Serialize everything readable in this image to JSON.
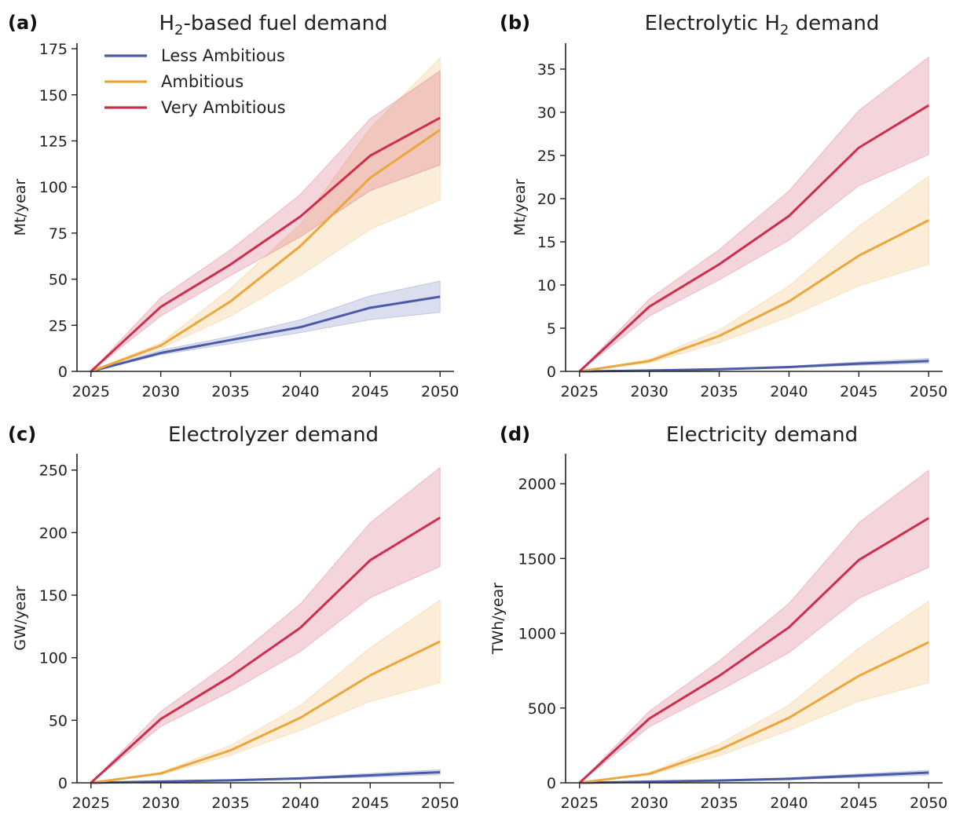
{
  "colors": {
    "less_ambitious": "#4a5aa8",
    "ambitious": "#eba73d",
    "very_ambitious": "#cc2e4e"
  },
  "legend": {
    "items": [
      "Less Ambitious",
      "Ambitious",
      "Very Ambitious"
    ]
  },
  "chart_data": [
    {
      "type": "line",
      "letter": "(a)",
      "title": "H2-based fuel demand",
      "title_parts": {
        "prefix": "H",
        "sub": "2",
        "suffix": "-based fuel demand"
      },
      "xlabel": "",
      "ylabel": "Mt/year",
      "x": [
        2025,
        2030,
        2035,
        2040,
        2045,
        2050
      ],
      "xlim": [
        2024,
        2051
      ],
      "ylim": [
        0,
        178
      ],
      "yticks": [
        0,
        25,
        50,
        75,
        100,
        125,
        150,
        175
      ],
      "xticks": [
        2025,
        2030,
        2035,
        2040,
        2045,
        2050
      ],
      "legend_position": "top-left",
      "series": [
        {
          "name": "Less Ambitious",
          "values": [
            0,
            10,
            17,
            24,
            34.5,
            40.5
          ],
          "lower": [
            0,
            9,
            15,
            21,
            28,
            32
          ],
          "upper": [
            0,
            11.5,
            19,
            28,
            41,
            49
          ]
        },
        {
          "name": "Ambitious",
          "values": [
            0,
            14,
            38,
            68,
            105,
            131
          ],
          "lower": [
            0,
            12.5,
            30,
            52,
            77,
            93
          ],
          "upper": [
            0,
            15.5,
            45,
            80,
            132,
            170
          ]
        },
        {
          "name": "Very Ambitious",
          "values": [
            0,
            35,
            58,
            84,
            117,
            137.5
          ],
          "lower": [
            0,
            30,
            52,
            73,
            98,
            112
          ],
          "upper": [
            0,
            40,
            66,
            96,
            137,
            163
          ]
        }
      ]
    },
    {
      "type": "line",
      "letter": "(b)",
      "title": "Electrolytic H2 demand",
      "title_parts": {
        "prefix": "Electrolytic H",
        "sub": "2",
        "suffix": " demand"
      },
      "xlabel": "",
      "ylabel": "Mt/year",
      "x": [
        2025,
        2030,
        2035,
        2040,
        2045,
        2050
      ],
      "xlim": [
        2024,
        2051
      ],
      "ylim": [
        0,
        38
      ],
      "yticks": [
        0,
        5,
        10,
        15,
        20,
        25,
        30,
        35
      ],
      "xticks": [
        2025,
        2030,
        2035,
        2040,
        2045,
        2050
      ],
      "series": [
        {
          "name": "Less Ambitious",
          "values": [
            0,
            0.1,
            0.25,
            0.5,
            0.9,
            1.2
          ],
          "lower": [
            0,
            0.05,
            0.2,
            0.4,
            0.7,
            0.95
          ],
          "upper": [
            0,
            0.15,
            0.3,
            0.6,
            1.1,
            1.5
          ]
        },
        {
          "name": "Ambitious",
          "values": [
            0,
            1.2,
            4.1,
            8.1,
            13.4,
            17.5
          ],
          "lower": [
            0,
            1.0,
            3.3,
            6.3,
            9.9,
            12.4
          ],
          "upper": [
            0,
            1.4,
            4.8,
            9.9,
            16.8,
            22.6
          ]
        },
        {
          "name": "Very Ambitious",
          "values": [
            0,
            7.5,
            12.4,
            18,
            25.9,
            30.8
          ],
          "lower": [
            0,
            6.4,
            10.6,
            15.2,
            21.5,
            25.1
          ],
          "upper": [
            0,
            8.4,
            14.1,
            20.9,
            30.2,
            36.4
          ]
        }
      ]
    },
    {
      "type": "line",
      "letter": "(c)",
      "title": "Electrolyzer demand",
      "xlabel": "",
      "ylabel": "GW/year",
      "x": [
        2025,
        2030,
        2035,
        2040,
        2045,
        2050
      ],
      "xlim": [
        2024,
        2051
      ],
      "ylim": [
        0,
        263
      ],
      "yticks": [
        0,
        50,
        100,
        150,
        200,
        250
      ],
      "xticks": [
        2025,
        2030,
        2035,
        2040,
        2045,
        2050
      ],
      "series": [
        {
          "name": "Less Ambitious",
          "values": [
            0,
            1,
            2,
            3.5,
            6,
            8.5
          ],
          "lower": [
            0,
            0.8,
            1.5,
            2.8,
            4.5,
            6.5
          ],
          "upper": [
            0,
            1.2,
            2.5,
            4.2,
            7.5,
            10.5
          ]
        },
        {
          "name": "Ambitious",
          "values": [
            0,
            7.5,
            26,
            52,
            86,
            113
          ],
          "lower": [
            0,
            6.5,
            22,
            42,
            65,
            80
          ],
          "upper": [
            0,
            8.5,
            30,
            62,
            108,
            146
          ]
        },
        {
          "name": "Very Ambitious",
          "values": [
            0,
            51,
            85,
            124,
            178,
            212
          ],
          "lower": [
            0,
            45,
            73,
            105,
            148,
            173
          ],
          "upper": [
            0,
            57,
            97,
            143,
            208,
            252
          ]
        }
      ]
    },
    {
      "type": "line",
      "letter": "(d)",
      "title": "Electricity demand",
      "xlabel": "",
      "ylabel": "TWh/year",
      "x": [
        2025,
        2030,
        2035,
        2040,
        2045,
        2050
      ],
      "xlim": [
        2024,
        2051
      ],
      "ylim": [
        0,
        2200
      ],
      "yticks": [
        0,
        500,
        1000,
        1500,
        2000
      ],
      "xticks": [
        2025,
        2030,
        2035,
        2040,
        2045,
        2050
      ],
      "series": [
        {
          "name": "Less Ambitious",
          "values": [
            0,
            8,
            15,
            27,
            48,
            68
          ],
          "lower": [
            0,
            6,
            11,
            20,
            36,
            52
          ],
          "upper": [
            0,
            10,
            19,
            34,
            60,
            84
          ]
        },
        {
          "name": "Ambitious",
          "values": [
            0,
            60,
            220,
            435,
            715,
            940
          ],
          "lower": [
            0,
            52,
            180,
            350,
            545,
            670
          ],
          "upper": [
            0,
            68,
            260,
            520,
            900,
            1215
          ]
        },
        {
          "name": "Very Ambitious",
          "values": [
            0,
            430,
            715,
            1040,
            1490,
            1770
          ],
          "lower": [
            0,
            375,
            615,
            870,
            1235,
            1440
          ],
          "upper": [
            0,
            480,
            815,
            1200,
            1740,
            2090
          ]
        }
      ]
    }
  ]
}
